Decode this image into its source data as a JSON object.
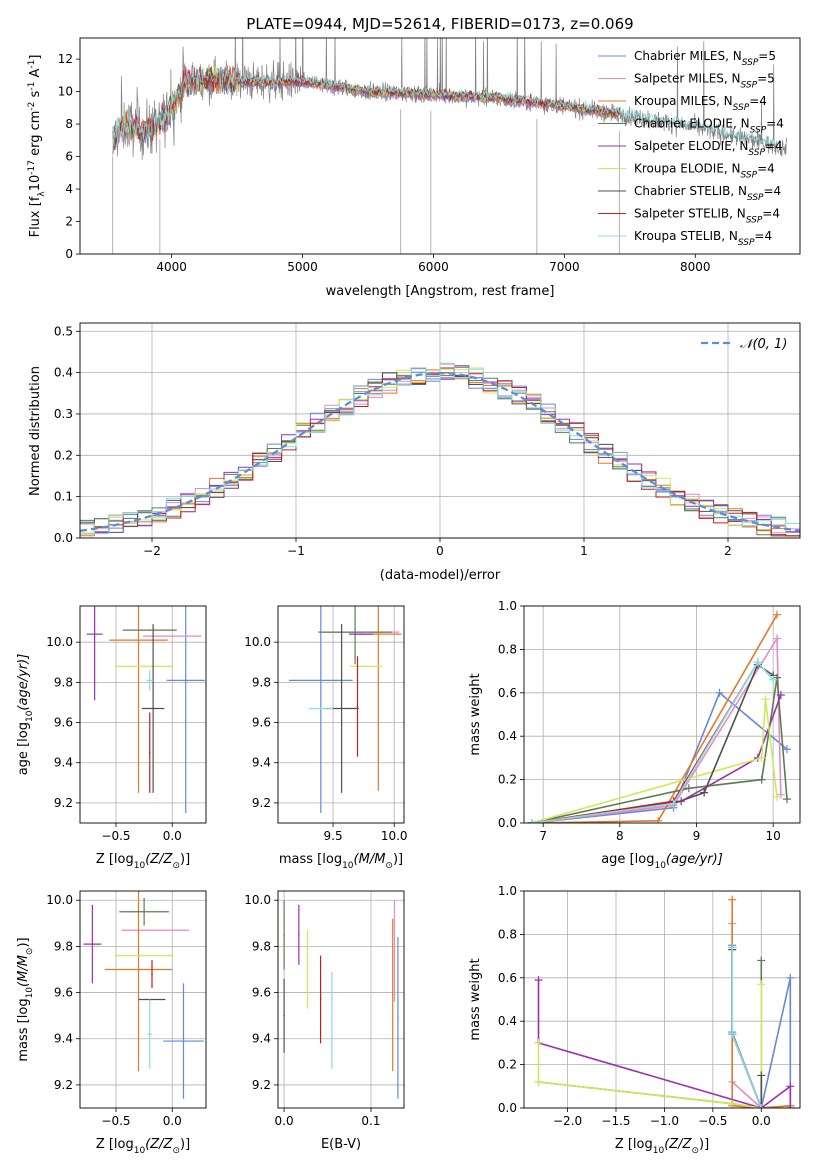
{
  "title": "PLATE=0944, MJD=52614, FIBERID=0173, z=0.069",
  "legend_colors": [
    "#6688dd",
    "#e88ac6",
    "#e07b29",
    "#5a7e52",
    "#9b30b0",
    "#cfe85a",
    "#505050",
    "#c02020",
    "#88dde0"
  ],
  "legend_labels": [
    "Chabrier MILES, N",
    "Salpeter MILES, N",
    "Kroupa MILES, N",
    "Chabrier ELODIE, N",
    "Salpeter ELODIE, N",
    "Kroupa ELODIE, N",
    "Chabrier STELIB, N",
    "Salpeter STELIB, N",
    "Kroupa STELIB, N"
  ],
  "legend_sub": "SSP",
  "legend_n": [
    "=5",
    "=5",
    "=4",
    "=4",
    "=4",
    "=4",
    "=4",
    "=4",
    "=4"
  ],
  "chart_data": [
    {
      "type": "line",
      "panel": "spectrum",
      "xlabel": "wavelength [Angstrom, rest frame]",
      "ylabel": "Flux [f",
      "ylabel_parts": [
        "λ",
        "10",
        "-17",
        " erg cm",
        "-2",
        " s",
        "-1",
        " A",
        "-1",
        "]"
      ],
      "xlim": [
        3300,
        8800
      ],
      "ylim": [
        0,
        13.3
      ],
      "xticks": [
        4000,
        5000,
        6000,
        7000,
        8000
      ],
      "yticks": [
        0,
        2,
        4,
        6,
        8,
        10,
        12
      ],
      "xticklabels": [
        "4000",
        "5000",
        "6000",
        "7000",
        "8000"
      ],
      "yticklabels": [
        "0",
        "2",
        "4",
        "6",
        "8",
        "10",
        "12"
      ],
      "data_range": [
        3550,
        8700
      ],
      "model_range": [
        3550,
        7420
      ],
      "continuum": [
        [
          3550,
          7.0
        ],
        [
          3650,
          8.0
        ],
        [
          3800,
          7.5
        ],
        [
          3950,
          8.3
        ],
        [
          4100,
          10.5
        ],
        [
          4300,
          10.8
        ],
        [
          4600,
          10.6
        ],
        [
          5000,
          10.6
        ],
        [
          5500,
          10.0
        ],
        [
          6000,
          9.8
        ],
        [
          6500,
          9.6
        ],
        [
          7000,
          9.1
        ],
        [
          7500,
          8.5
        ],
        [
          8000,
          7.8
        ],
        [
          8700,
          6.5
        ]
      ]
    },
    {
      "type": "histogram",
      "panel": "residuals",
      "xlabel": "(data-model)/error",
      "ylabel": "Normed distribution",
      "xlim": [
        -2.5,
        2.5
      ],
      "ylim": [
        0,
        0.52
      ],
      "xticks": [
        -2,
        -1,
        0,
        1,
        2
      ],
      "yticks": [
        0,
        0.1,
        0.2,
        0.3,
        0.4,
        0.5
      ],
      "xticklabels": [
        "−2",
        "−1",
        "0",
        "1",
        "2"
      ],
      "yticklabels": [
        "0.0",
        "0.1",
        "0.2",
        "0.3",
        "0.4",
        "0.5"
      ],
      "bin_width": 0.1,
      "bin_start": -2.6,
      "reference_label": "𝒩(0, 1)",
      "reference_color": "#5b8ed6"
    },
    {
      "type": "scatter",
      "panel": "age-vs-Z",
      "xlabel": "Z [log",
      "xlabel_parts": [
        "10",
        "(Z/Z",
        "⊙",
        ")]"
      ],
      "ylabel": "age  [log",
      "ylabel_parts": [
        "10",
        "(age/yr)]"
      ],
      "xlim": [
        -0.82,
        0.3
      ],
      "ylim": [
        9.1,
        10.18
      ],
      "xticks": [
        -0.5,
        0.0
      ],
      "yticks": [
        9.2,
        9.4,
        9.6,
        9.8,
        10.0
      ],
      "xticklabels": [
        "−0.5",
        "0.0"
      ],
      "yticklabels": [
        "9.2",
        "9.4",
        "9.6",
        "9.8",
        "10.0"
      ],
      "points": [
        {
          "x": 0.12,
          "y": 9.81,
          "xerr": 0.17,
          "yerr": 0.66
        },
        {
          "x": 0.0,
          "y": 10.03,
          "xerr": 0.26,
          "yerr": 0.0
        },
        {
          "x": -0.3,
          "y": 10.01,
          "xerr": 0.26,
          "yerr": 0.76
        },
        {
          "x": -0.2,
          "y": 10.06,
          "xerr": 0.24,
          "yerr": 0.0
        },
        {
          "x": -0.69,
          "y": 10.04,
          "xerr": 0.07,
          "yerr": 0.33
        },
        {
          "x": -0.25,
          "y": 9.88,
          "xerr": 0.26,
          "yerr": 0.0
        },
        {
          "x": -0.17,
          "y": 9.67,
          "xerr": 0.1,
          "yerr": 0.42
        },
        {
          "x": -0.2,
          "y": 9.45,
          "xerr": 0.0,
          "yerr": 0.2
        },
        {
          "x": -0.2,
          "y": 9.81,
          "xerr": 0.03,
          "yerr": 0.05
        }
      ]
    },
    {
      "type": "scatter",
      "panel": "age-vs-mass",
      "xlabel": "mass [log",
      "xlabel_parts": [
        "10",
        "(M/M",
        "⊙",
        ")]"
      ],
      "xlim": [
        9.05,
        10.08
      ],
      "ylim": [
        9.1,
        10.18
      ],
      "xticks": [
        9.5,
        10.0
      ],
      "yticks": [
        9.2,
        9.4,
        9.6,
        9.8,
        10.0
      ],
      "xticklabels": [
        "9.5",
        "10.0"
      ],
      "yticklabels": [
        "9.2",
        "9.4",
        "9.6",
        "9.8",
        "10.0"
      ],
      "points": [
        {
          "x": 9.4,
          "y": 9.81,
          "xerr": 0.26,
          "yerr": 0.66
        },
        {
          "x": 9.72,
          "y": 10.05,
          "xerr": 0.32,
          "yerr": 0.0
        },
        {
          "x": 9.87,
          "y": 10.04,
          "xerr": 0.19,
          "yerr": 0.78
        },
        {
          "x": 9.68,
          "y": 10.05,
          "xerr": 0.3,
          "yerr": 0.16
        },
        {
          "x": 9.73,
          "y": 10.04,
          "xerr": 0.1,
          "yerr": 0.0
        },
        {
          "x": 9.77,
          "y": 9.88,
          "xerr": 0.13,
          "yerr": 0.0
        },
        {
          "x": 9.57,
          "y": 9.67,
          "xerr": 0.14,
          "yerr": 0.42
        },
        {
          "x": 9.7,
          "y": 9.68,
          "xerr": 0.0,
          "yerr": 0.25
        },
        {
          "x": 9.4,
          "y": 9.67,
          "xerr": 0.1,
          "yerr": 0.0
        }
      ]
    },
    {
      "type": "line",
      "panel": "weight-vs-age",
      "xlabel": "age  [log",
      "xlabel_parts": [
        "10",
        "(age/yr)]"
      ],
      "ylabel": "mass weight",
      "xlim": [
        6.75,
        10.35
      ],
      "ylim": [
        0,
        1.0
      ],
      "xticks": [
        7,
        8,
        9,
        10
      ],
      "yticks": [
        0,
        0.2,
        0.4,
        0.6,
        0.8,
        1.0
      ],
      "xticklabels": [
        "7",
        "8",
        "9",
        "10"
      ],
      "yticklabels": [
        "0.0",
        "0.2",
        "0.4",
        "0.6",
        "0.8",
        "1.0"
      ],
      "series": [
        {
          "x": [
            6.85,
            8.7,
            9.3,
            10.18
          ],
          "y": [
            0.0,
            0.07,
            0.6,
            0.34
          ]
        },
        {
          "x": [
            6.85,
            8.7,
            10.05,
            10.1
          ],
          "y": [
            0.0,
            0.08,
            0.85,
            0.13
          ]
        },
        {
          "x": [
            6.85,
            8.5,
            10.05
          ],
          "y": [
            0.0,
            0.01,
            0.96
          ]
        },
        {
          "x": [
            6.85,
            8.9,
            9.85,
            10.05,
            10.18
          ],
          "y": [
            0.0,
            0.16,
            0.2,
            0.67,
            0.11
          ]
        },
        {
          "x": [
            6.85,
            8.8,
            9.8,
            10.1
          ],
          "y": [
            0.0,
            0.1,
            0.3,
            0.59
          ]
        },
        {
          "x": [
            6.85,
            9.85,
            9.9,
            10.05
          ],
          "y": [
            0.0,
            0.3,
            0.57,
            0.12
          ]
        },
        {
          "x": [
            6.85,
            8.7,
            9.1,
            9.8,
            10.0
          ],
          "y": [
            0.0,
            0.09,
            0.14,
            0.73,
            0.68
          ]
        },
        {
          "x": [
            6.85,
            8.7,
            9.8
          ],
          "y": [
            0.0,
            0.1,
            0.74
          ]
        },
        {
          "x": [
            6.85,
            8.7,
            9.8,
            10.0
          ],
          "y": [
            0.0,
            0.09,
            0.74,
            0.66
          ]
        }
      ]
    },
    {
      "type": "scatter",
      "panel": "mass-vs-Z",
      "xlabel": "Z [log",
      "xlabel_parts": [
        "10",
        "(Z/Z",
        "⊙",
        ")]"
      ],
      "ylabel": "mass [log",
      "ylabel_parts": [
        "10",
        "(M/M",
        "⊙",
        ")]"
      ],
      "xlim": [
        -0.82,
        0.3
      ],
      "ylim": [
        9.1,
        10.04
      ],
      "xticks": [
        -0.5,
        0.0
      ],
      "yticks": [
        9.2,
        9.4,
        9.6,
        9.8,
        10.0
      ],
      "xticklabels": [
        "−0.5",
        "0.0"
      ],
      "yticklabels": [
        "9.2",
        "9.4",
        "9.6",
        "9.8",
        "10.0"
      ],
      "points": [
        {
          "x": 0.1,
          "y": 9.39,
          "xerr": 0.18,
          "yerr": 0.25
        },
        {
          "x": -0.15,
          "y": 9.87,
          "xerr": 0.3,
          "yerr": 0.0
        },
        {
          "x": -0.3,
          "y": 9.7,
          "xerr": 0.3,
          "yerr": 0.44
        },
        {
          "x": -0.25,
          "y": 9.95,
          "xerr": 0.22,
          "yerr": 0.06
        },
        {
          "x": -0.71,
          "y": 9.81,
          "xerr": 0.08,
          "yerr": 0.17
        },
        {
          "x": -0.25,
          "y": 9.76,
          "xerr": 0.26,
          "yerr": 0.0
        },
        {
          "x": -0.18,
          "y": 9.57,
          "xerr": 0.12,
          "yerr": 0.0
        },
        {
          "x": -0.18,
          "y": 9.68,
          "xerr": 0.0,
          "yerr": 0.06
        },
        {
          "x": -0.2,
          "y": 9.42,
          "xerr": 0.02,
          "yerr": 0.15
        }
      ]
    },
    {
      "type": "scatter",
      "panel": "mass-vs-EBV",
      "xlabel": "E(B-V)",
      "xlim": [
        -0.007,
        0.138
      ],
      "ylim": [
        9.1,
        10.04
      ],
      "xticks": [
        0.0,
        0.1
      ],
      "yticks": [
        9.2,
        9.4,
        9.6,
        9.8,
        10.0
      ],
      "xticklabels": [
        "0.0",
        "0.1"
      ],
      "yticklabels": [
        "9.2",
        "9.4",
        "9.6",
        "9.8",
        "10.0"
      ],
      "points": [
        {
          "x": 0.131,
          "y": 9.49,
          "yerr": 0.35
        },
        {
          "x": 0.127,
          "y": 9.78,
          "yerr": 0.22
        },
        {
          "x": 0.125,
          "y": 9.59,
          "yerr": 0.33
        },
        {
          "x": 0.0,
          "y": 9.85,
          "yerr": 0.15
        },
        {
          "x": 0.017,
          "y": 9.85,
          "yerr": 0.13
        },
        {
          "x": 0.027,
          "y": 9.7,
          "yerr": 0.17
        },
        {
          "x": 0.0,
          "y": 9.5,
          "yerr": 0.16
        },
        {
          "x": 0.042,
          "y": 9.57,
          "yerr": 0.19
        },
        {
          "x": 0.055,
          "y": 9.48,
          "yerr": 0.21
        }
      ]
    },
    {
      "type": "line",
      "panel": "weight-vs-Z",
      "xlabel": "Z [log",
      "xlabel_parts": [
        "10",
        "(Z/Z",
        "⊙",
        ")]"
      ],
      "ylabel": "mass weight",
      "xlim": [
        -2.45,
        0.4
      ],
      "ylim": [
        0,
        1.0
      ],
      "xticks": [
        -2.0,
        -1.5,
        -1.0,
        -0.5,
        0.0
      ],
      "yticks": [
        0,
        0.2,
        0.4,
        0.6,
        0.8,
        1.0
      ],
      "xticklabels": [
        "−2.0",
        "−1.5",
        "−1.0",
        "−0.5",
        "0.0"
      ],
      "yticklabels": [
        "0.0",
        "0.2",
        "0.4",
        "0.6",
        "0.8",
        "1.0"
      ],
      "series": [
        {
          "x": [
            -0.3,
            -0.3,
            0.0,
            0.3,
            0.3
          ],
          "y": [
            0.75,
            0.35,
            0.0,
            0.6,
            0.01
          ]
        },
        {
          "x": [
            -0.3,
            -0.3,
            0.0,
            0.3
          ],
          "y": [
            0.85,
            0.12,
            0.0,
            0.01
          ]
        },
        {
          "x": [
            -0.3,
            -0.3,
            0.0,
            0.3
          ],
          "y": [
            0.96,
            0.01,
            0.0,
            0.01
          ]
        },
        {
          "x": [
            -2.3,
            -0.3,
            0.0,
            0.0
          ],
          "y": [
            0.12,
            0.02,
            0.0,
            0.68
          ]
        },
        {
          "x": [
            -2.3,
            -2.3,
            0.0,
            0.3,
            0.3
          ],
          "y": [
            0.59,
            0.3,
            0.0,
            0.1,
            0.0
          ]
        },
        {
          "x": [
            -2.3,
            -2.3,
            -0.3,
            0.0,
            0.0
          ],
          "y": [
            0.3,
            0.12,
            0.02,
            0.0,
            0.57
          ]
        },
        {
          "x": [
            -0.3,
            -0.3,
            0.0,
            0.0
          ],
          "y": [
            0.73,
            0.34,
            0.0,
            0.15
          ]
        },
        {
          "x": [
            -0.3,
            -0.3,
            0.0
          ],
          "y": [
            0.74,
            0.34,
            0.0
          ]
        },
        {
          "x": [
            -0.3,
            -0.3,
            0.0
          ],
          "y": [
            0.74,
            0.34,
            0.0
          ]
        }
      ]
    }
  ]
}
